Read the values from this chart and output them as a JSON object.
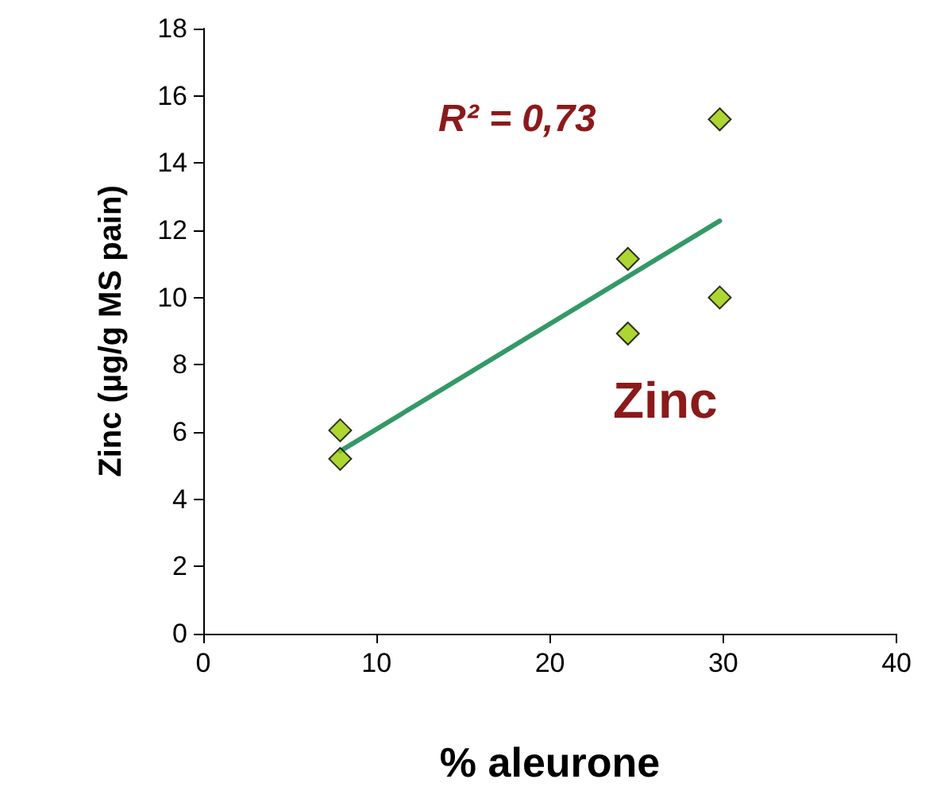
{
  "chart_data": {
    "type": "scatter",
    "xlabel": "% aleurone",
    "ylabel": "Zinc (µg/g MS pain)",
    "xlim": [
      0,
      40
    ],
    "xticks": [
      0,
      10,
      20,
      30,
      40
    ],
    "ylim": [
      0,
      18
    ],
    "yticks": [
      0,
      2,
      4,
      6,
      8,
      10,
      12,
      14,
      16,
      18
    ],
    "grid": false,
    "marker": "diamond",
    "annotations": [
      "R² = 0,73",
      "Zinc"
    ],
    "series": [
      {
        "color": "#99cc00",
        "x": [
          7.9,
          7.9,
          24.5,
          24.5,
          29.8,
          29.8
        ],
        "values": [
          6.05,
          5.2,
          11.15,
          8.93,
          15.3,
          10.0
        ]
      },
      {
        "type": "line",
        "color": "#339966",
        "x": [
          7.9,
          29.8
        ],
        "values": [
          5.43,
          12.28
        ],
        "marker": "none",
        "line_style": "solid"
      }
    ]
  }
}
